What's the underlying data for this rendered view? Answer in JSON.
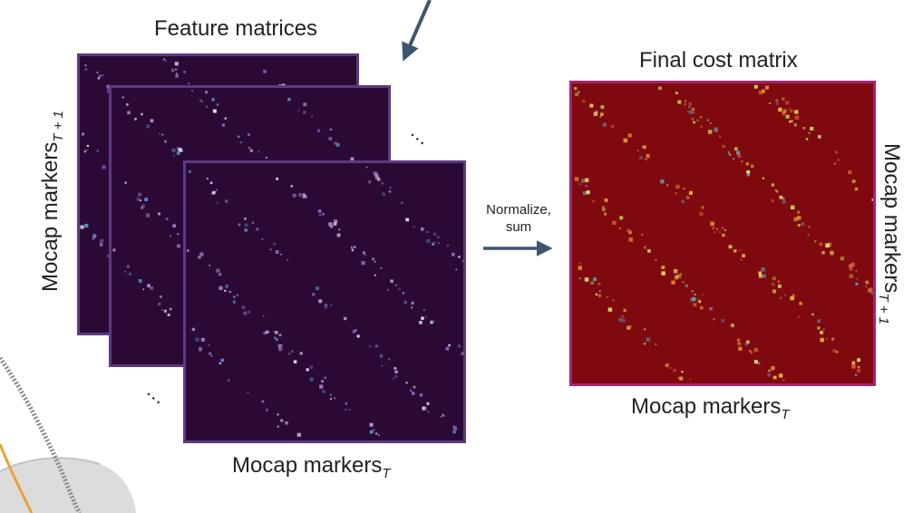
{
  "feature_title": "Feature matrices",
  "final_title": "Final cost matrix",
  "normalize_line1": "Normalize,",
  "normalize_line2": "sum",
  "markers_base": "Mocap markers",
  "sub_t": "T",
  "sub_t1": "T + 1",
  "ellipsis": "…",
  "colors": {
    "feature_border": "#5b3a82",
    "feature_bg": "#2a0a35",
    "final_border": "#a4246f",
    "final_bg": "#7e0a10",
    "arrow": "#3f5570"
  }
}
